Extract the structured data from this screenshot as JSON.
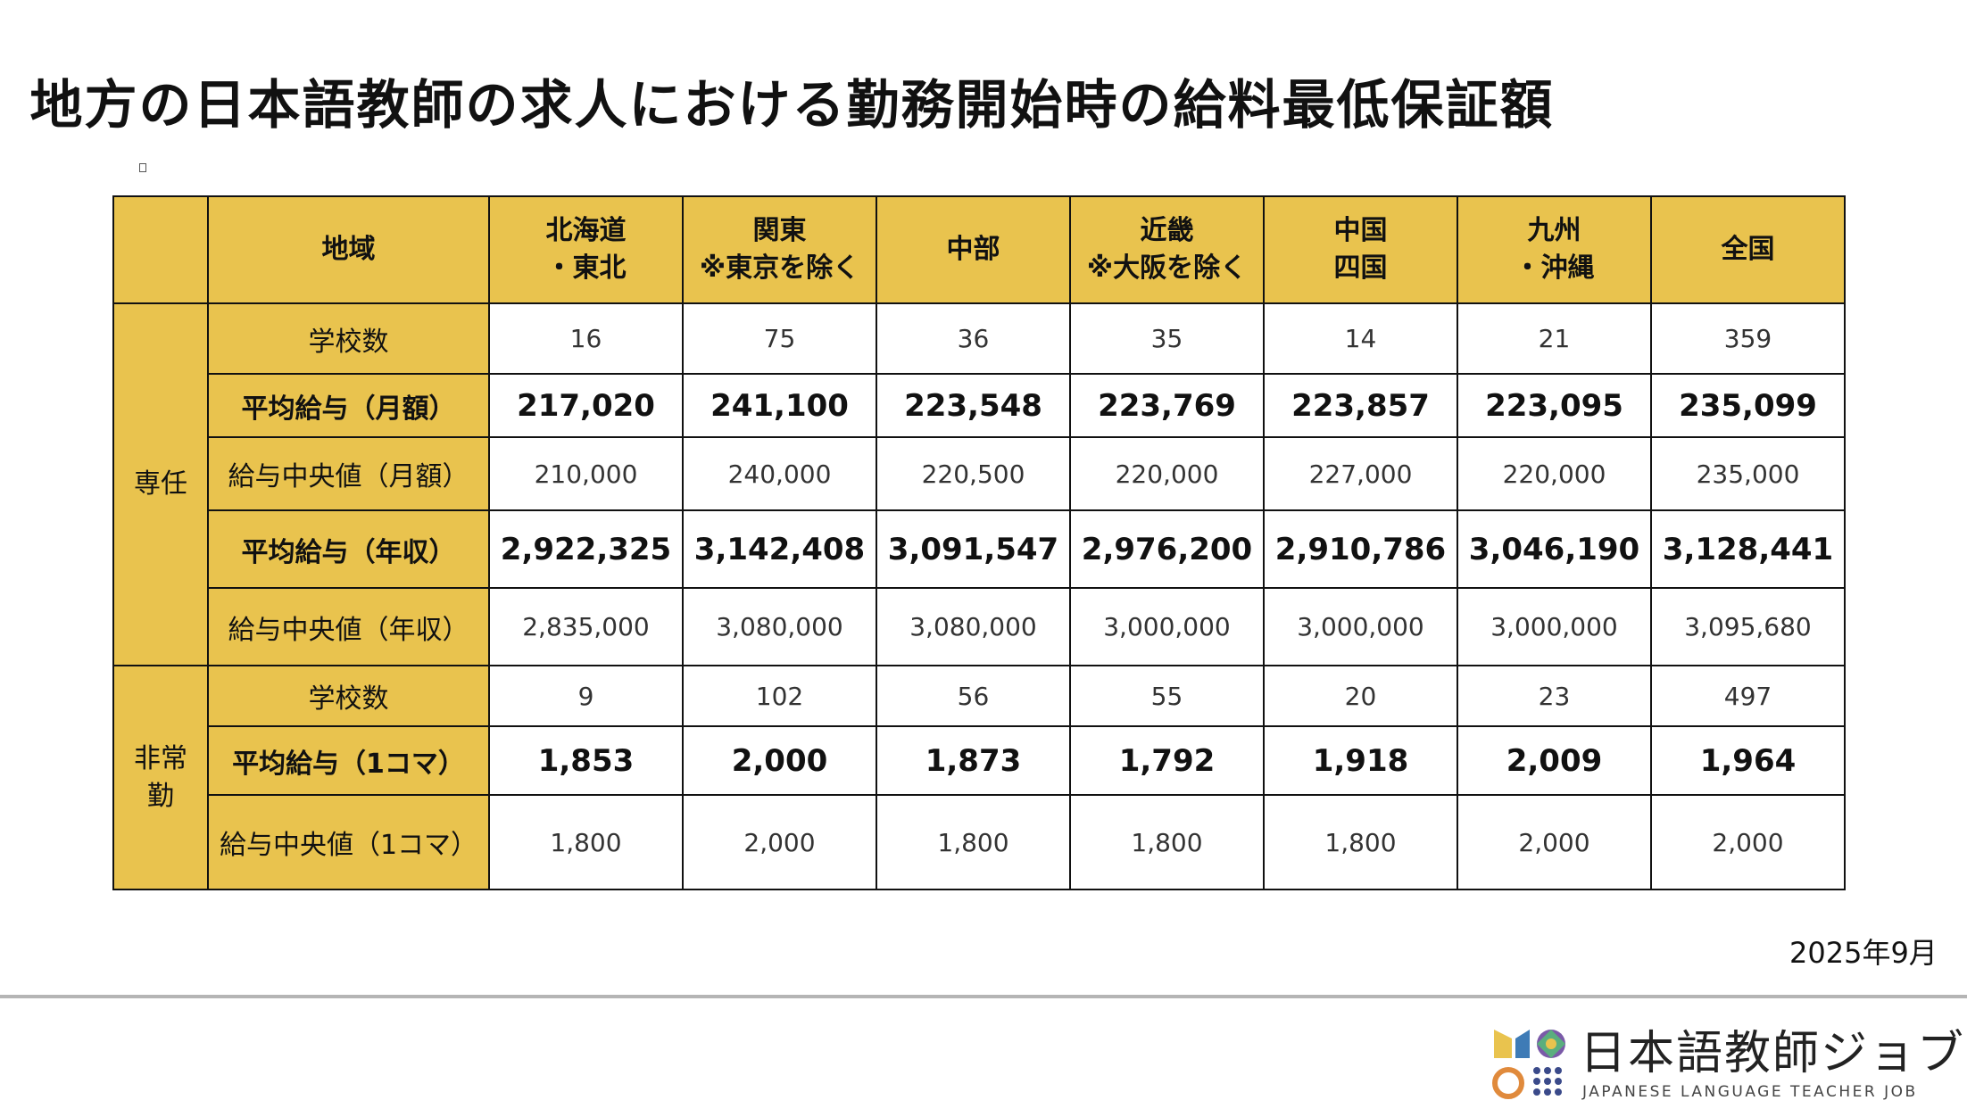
{
  "title": "地方の日本語教師の求人における勤務開始時の給料最低保証額",
  "table": {
    "header": {
      "region_label": "地域",
      "columns": [
        [
          "北海道",
          "・東北"
        ],
        [
          "関東",
          "※東京を除く"
        ],
        [
          "中部"
        ],
        [
          "近畿",
          "※大阪を除く"
        ],
        [
          "中国",
          "四国"
        ],
        [
          "九州",
          "・沖縄"
        ],
        [
          "全国"
        ]
      ]
    },
    "groups": [
      {
        "label_lines": [
          "専任"
        ],
        "rows": [
          {
            "label": "学校数",
            "bold": false,
            "values": [
              "16",
              "75",
              "36",
              "35",
              "14",
              "21",
              "359"
            ]
          },
          {
            "label": "平均給与（月額）",
            "bold": true,
            "values": [
              "217,020",
              "241,100",
              "223,548",
              "223,769",
              "223,857",
              "223,095",
              "235,099"
            ]
          },
          {
            "label": "給与中央値（月額）",
            "bold": false,
            "values": [
              "210,000",
              "240,000",
              "220,500",
              "220,000",
              "227,000",
              "220,000",
              "235,000"
            ]
          },
          {
            "label": "平均給与（年収）",
            "bold": true,
            "values": [
              "2,922,325",
              "3,142,408",
              "3,091,547",
              "2,976,200",
              "2,910,786",
              "3,046,190",
              "3,128,441"
            ]
          },
          {
            "label": "給与中央値（年収）",
            "bold": false,
            "values": [
              "2,835,000",
              "3,080,000",
              "3,080,000",
              "3,000,000",
              "3,000,000",
              "3,000,000",
              "3,095,680"
            ]
          }
        ]
      },
      {
        "label_lines": [
          "非常",
          "勤"
        ],
        "rows": [
          {
            "label": "学校数",
            "bold": false,
            "values": [
              "9",
              "102",
              "56",
              "55",
              "20",
              "23",
              "497"
            ]
          },
          {
            "label": "平均給与（1コマ）",
            "bold": true,
            "values": [
              "1,853",
              "2,000",
              "1,873",
              "1,792",
              "1,918",
              "2,009",
              "1,964"
            ]
          },
          {
            "label": "給与中央値（1コマ）",
            "bold": false,
            "values": [
              "1,800",
              "2,000",
              "1,800",
              "1,800",
              "1,800",
              "2,000",
              "2,000"
            ]
          }
        ]
      }
    ]
  },
  "date": "2025年9月",
  "logo": {
    "name": "日本語教師ジョブ",
    "subtitle": "JAPANESE LANGUAGE TEACHER JOB",
    "icon": "logo-mark-icon",
    "colors": [
      "#E9C34E",
      "#3E7BB6",
      "#7A5AA8",
      "#5AAE7E",
      "#E08A3C",
      "#3A4A8A"
    ]
  },
  "colors": {
    "header_fill": "#E9C34E",
    "border": "#111111",
    "text": "#111111"
  }
}
